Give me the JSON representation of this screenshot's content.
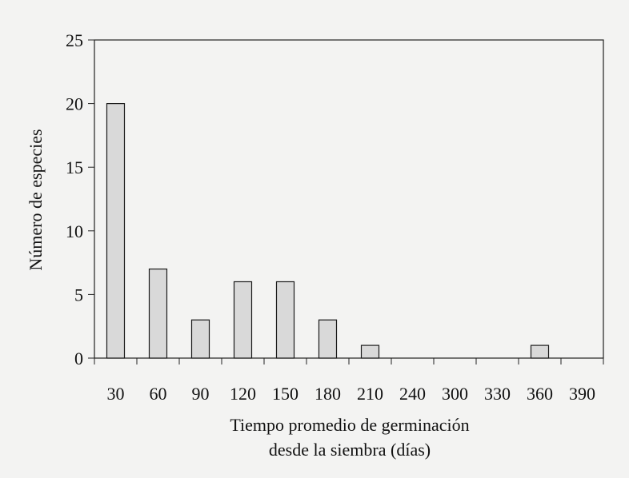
{
  "chart_data": {
    "type": "bar",
    "title": "",
    "xlabel_line1": "Tiempo promedio de germinación",
    "xlabel_line2": "desde la siembra (días)",
    "ylabel": "Número de especies",
    "categories": [
      "30",
      "60",
      "90",
      "120",
      "150",
      "180",
      "210",
      "240",
      "300",
      "330",
      "360",
      "390"
    ],
    "values": [
      20,
      7,
      3,
      6,
      6,
      3,
      1,
      0,
      0,
      0,
      1,
      0
    ],
    "ylim": [
      0,
      25
    ],
    "yticks": [
      0,
      5,
      10,
      15,
      20,
      25
    ],
    "grid": false,
    "colors": {
      "bar_fill": "#d9d9d9",
      "bar_stroke": "#1a1a1a",
      "background": "#f3f3f2"
    }
  }
}
